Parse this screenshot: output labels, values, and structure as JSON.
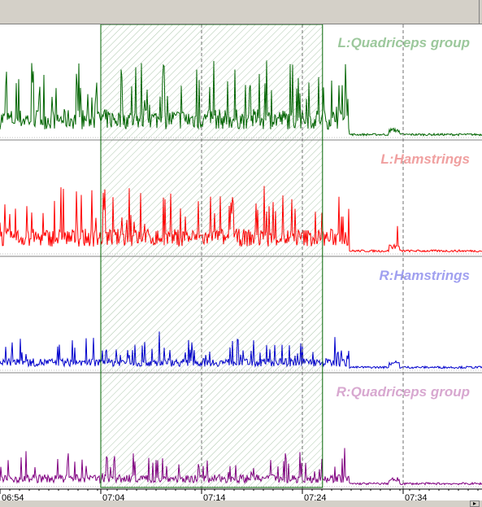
{
  "chart_data": {
    "type": "line",
    "time_ticks": [
      "06:54",
      "07:04",
      "07:14",
      "07:24",
      "07:34"
    ],
    "selection": {
      "start": "07:04",
      "end": "07:26"
    },
    "markers": [
      "07:14",
      "07:24",
      "07:34"
    ],
    "channels": [
      {
        "name": "L:Quadriceps group",
        "color": "#006400",
        "label_color": "#9cc89c",
        "peak_level": 0.85,
        "spikes": [
          {
            "x": 0.06,
            "y": 0.47
          },
          {
            "x": 0.32,
            "y": 0.5
          },
          {
            "x": 0.56,
            "y": 0.45
          },
          {
            "x": 0.77,
            "y": 0.47
          },
          {
            "x": 0.96,
            "y": 0.5
          },
          {
            "x": 1.2,
            "y": 0.62
          },
          {
            "x": 1.4,
            "y": 0.68
          },
          {
            "x": 1.63,
            "y": 0.65
          },
          {
            "x": 1.95,
            "y": 0.62
          },
          {
            "x": 2.12,
            "y": 0.7
          },
          {
            "x": 2.33,
            "y": 0.62
          },
          {
            "x": 2.57,
            "y": 0.58
          },
          {
            "x": 2.88,
            "y": 0.67
          },
          {
            "x": 3.16,
            "y": 0.55
          },
          {
            "x": 3.43,
            "y": 0.67
          }
        ]
      },
      {
        "name": "L:Hamstrings",
        "color": "#ff0000",
        "label_color": "#f0a0a0",
        "peak_level": 0.75,
        "spikes": [
          {
            "x": 0.05,
            "y": 0.45
          },
          {
            "x": 0.43,
            "y": 0.37
          },
          {
            "x": 0.76,
            "y": 0.57
          },
          {
            "x": 1.03,
            "y": 0.4
          },
          {
            "x": 1.28,
            "y": 0.6
          },
          {
            "x": 1.97,
            "y": 0.48
          },
          {
            "x": 2.56,
            "y": 0.4
          },
          {
            "x": 3.36,
            "y": 0.52
          },
          {
            "x": 3.95,
            "y": 0.25
          }
        ]
      },
      {
        "name": "R:Hamstrings",
        "color": "#0000cc",
        "label_color": "#a0a0f0",
        "peak_level": 0.34,
        "spikes": [
          {
            "x": 0.12,
            "y": 0.25
          },
          {
            "x": 0.72,
            "y": 0.27
          },
          {
            "x": 1.58,
            "y": 0.35
          },
          {
            "x": 2.52,
            "y": 0.27
          },
          {
            "x": 3.32,
            "y": 0.3
          }
        ]
      },
      {
        "name": "R:Quadriceps group",
        "color": "#800080",
        "label_color": "#d8a8d0",
        "peak_level": 0.35,
        "spikes": [
          {
            "x": 0.26,
            "y": 0.32
          },
          {
            "x": 0.68,
            "y": 0.3
          },
          {
            "x": 1.32,
            "y": 0.3
          },
          {
            "x": 2.83,
            "y": 0.3
          },
          {
            "x": 3.42,
            "y": 0.35
          }
        ]
      }
    ]
  }
}
